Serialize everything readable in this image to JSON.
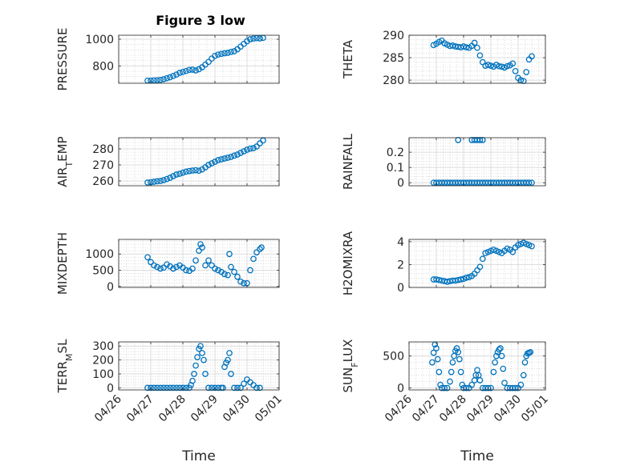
{
  "figure": {
    "title": "Figure 3 low",
    "xlabel": "Time",
    "date_ticks": [
      "04/26",
      "04/27",
      "04/28",
      "04/29",
      "04/30",
      "05/01"
    ],
    "marker_color": "#0072BD",
    "grid": true
  },
  "chart_data": [
    {
      "type": "scatter",
      "ylabel": "PRESSURE",
      "xlim": [
        "04/26",
        "05/01"
      ],
      "ylim": [
        670,
        1030
      ],
      "yticks": [
        800,
        1000
      ],
      "ytick_labels": [
        "800",
        "1000"
      ],
      "x": [
        0.9,
        1.0,
        1.1,
        1.2,
        1.3,
        1.4,
        1.5,
        1.6,
        1.7,
        1.8,
        1.9,
        2.0,
        2.1,
        2.2,
        2.3,
        2.4,
        2.5,
        2.6,
        2.7,
        2.8,
        2.9,
        3.0,
        3.1,
        3.2,
        3.3,
        3.4,
        3.5,
        3.6,
        3.7,
        3.8,
        3.9,
        4.0,
        4.1,
        4.2,
        4.3,
        4.4,
        4.5
      ],
      "y": [
        690,
        690,
        692,
        693,
        695,
        700,
        708,
        715,
        725,
        735,
        748,
        755,
        762,
        770,
        772,
        766,
        775,
        790,
        810,
        830,
        855,
        875,
        885,
        890,
        895,
        898,
        905,
        910,
        925,
        945,
        965,
        985,
        1000,
        1005,
        1008,
        1006,
        1010
      ]
    },
    {
      "type": "scatter",
      "ylabel": "THETA",
      "xlim": [
        "04/26",
        "05/01"
      ],
      "ylim": [
        279.3,
        290
      ],
      "yticks": [
        280,
        285,
        290
      ],
      "ytick_labels": [
        "280",
        "285",
        "290"
      ],
      "x": [
        0.9,
        1.0,
        1.1,
        1.2,
        1.3,
        1.4,
        1.5,
        1.6,
        1.7,
        1.8,
        1.9,
        2.0,
        2.1,
        2.2,
        2.3,
        2.4,
        2.5,
        2.6,
        2.7,
        2.8,
        2.9,
        3.0,
        3.1,
        3.2,
        3.3,
        3.4,
        3.5,
        3.6,
        3.7,
        3.8,
        3.9,
        4.0,
        4.1,
        4.2,
        4.3,
        4.4,
        4.5
      ],
      "y": [
        287.8,
        288.1,
        288.5,
        288.8,
        288.2,
        287.9,
        287.6,
        287.7,
        287.5,
        287.4,
        287.3,
        287.5,
        287.3,
        287.2,
        287.6,
        288.3,
        287.2,
        285.5,
        284.0,
        283.2,
        283.4,
        283.2,
        283.0,
        283.4,
        283.1,
        283.0,
        282.8,
        283.1,
        283.3,
        283.7,
        282.0,
        280.5,
        280.0,
        279.8,
        281.8,
        284.6,
        285.3
      ]
    },
    {
      "type": "scatter",
      "ylabel": "AIR_TEMP",
      "xlim": [
        "04/26",
        "05/01"
      ],
      "ylim": [
        257,
        287
      ],
      "yticks": [
        260,
        270,
        280
      ],
      "ytick_labels": [
        "260",
        "270",
        "280"
      ],
      "x": [
        0.9,
        1.0,
        1.1,
        1.2,
        1.3,
        1.4,
        1.5,
        1.6,
        1.7,
        1.8,
        1.9,
        2.0,
        2.1,
        2.2,
        2.3,
        2.4,
        2.5,
        2.6,
        2.7,
        2.8,
        2.9,
        3.0,
        3.1,
        3.2,
        3.3,
        3.4,
        3.5,
        3.6,
        3.7,
        3.8,
        3.9,
        4.0,
        4.1,
        4.2,
        4.3,
        4.4,
        4.5
      ],
      "y": [
        259.0,
        259.2,
        259.5,
        259.8,
        260.0,
        260.5,
        261.2,
        262.0,
        263.0,
        264.0,
        264.5,
        265.2,
        265.8,
        266.2,
        266.5,
        266.7,
        266.4,
        267.2,
        268.5,
        270.0,
        271.0,
        272.0,
        273.0,
        273.5,
        274.0,
        274.5,
        275.0,
        275.8,
        276.5,
        277.5,
        278.5,
        279.5,
        280.2,
        280.5,
        281.5,
        283.5,
        285.3
      ]
    },
    {
      "type": "scatter",
      "ylabel": "RAINFALL",
      "xlim": [
        "04/26",
        "05/01"
      ],
      "ylim": [
        -0.02,
        0.295
      ],
      "yticks": [
        0,
        0.1,
        0.2
      ],
      "ytick_labels": [
        "0",
        "0.1",
        "0.2"
      ],
      "x": [
        0.9,
        1.0,
        1.1,
        1.2,
        1.3,
        1.4,
        1.5,
        1.6,
        1.7,
        1.8,
        1.9,
        2.0,
        2.1,
        2.2,
        2.3,
        2.4,
        2.5,
        2.6,
        2.7,
        2.8,
        2.9,
        3.0,
        3.1,
        3.2,
        3.3,
        3.4,
        3.5,
        3.6,
        3.7,
        3.8,
        3.9,
        4.0,
        4.1,
        4.2,
        4.3,
        4.4,
        4.5,
        1.8,
        2.3,
        2.4,
        2.5,
        2.6,
        2.7
      ],
      "y": [
        0,
        0,
        0,
        0,
        0,
        0,
        0,
        0,
        0,
        0,
        0,
        0,
        0,
        0,
        0,
        0,
        0,
        0,
        0,
        0,
        0,
        0,
        0,
        0,
        0,
        0,
        0,
        0,
        0,
        0,
        0,
        0,
        0,
        0,
        0,
        0,
        0,
        0.28,
        0.28,
        0.28,
        0.28,
        0.28,
        0.28
      ]
    },
    {
      "type": "scatter",
      "ylabel": "MIXDEPTH",
      "xlim": [
        "04/26",
        "05/01"
      ],
      "ylim": [
        -30,
        1450
      ],
      "yticks": [
        0,
        500,
        1000
      ],
      "ytick_labels": [
        "0",
        "500",
        "1000"
      ],
      "x": [
        0.9,
        1.0,
        1.1,
        1.2,
        1.3,
        1.4,
        1.5,
        1.6,
        1.7,
        1.8,
        1.9,
        2.0,
        2.1,
        2.2,
        2.3,
        2.4,
        2.5,
        2.55,
        2.6,
        2.7,
        2.8,
        2.9,
        3.0,
        3.1,
        3.2,
        3.3,
        3.4,
        3.45,
        3.5,
        3.6,
        3.7,
        3.8,
        3.9,
        4.0,
        4.1,
        4.2,
        4.3,
        4.4,
        4.45
      ],
      "y": [
        900,
        750,
        650,
        600,
        550,
        580,
        680,
        620,
        550,
        600,
        650,
        580,
        500,
        480,
        550,
        800,
        1100,
        1300,
        1200,
        650,
        800,
        650,
        550,
        500,
        450,
        380,
        350,
        1000,
        600,
        450,
        300,
        150,
        100,
        100,
        500,
        850,
        1050,
        1150,
        1200
      ]
    },
    {
      "type": "scatter",
      "ylabel": "H2OMIXRA",
      "xlim": [
        "04/26",
        "05/01"
      ],
      "ylim": [
        0,
        4.2
      ],
      "yticks": [
        0,
        2,
        4
      ],
      "ytick_labels": [
        "0",
        "2",
        "4"
      ],
      "x": [
        0.9,
        1.0,
        1.1,
        1.2,
        1.3,
        1.4,
        1.5,
        1.6,
        1.7,
        1.8,
        1.9,
        2.0,
        2.1,
        2.2,
        2.3,
        2.4,
        2.5,
        2.6,
        2.7,
        2.8,
        2.9,
        3.0,
        3.1,
        3.2,
        3.3,
        3.4,
        3.5,
        3.6,
        3.7,
        3.8,
        3.9,
        4.0,
        4.1,
        4.2,
        4.3,
        4.4,
        4.5
      ],
      "y": [
        0.7,
        0.7,
        0.65,
        0.6,
        0.55,
        0.5,
        0.55,
        0.6,
        0.6,
        0.65,
        0.7,
        0.75,
        0.85,
        0.9,
        1.0,
        1.2,
        1.5,
        1.8,
        2.5,
        3.0,
        3.1,
        3.2,
        3.3,
        3.2,
        3.1,
        3.0,
        3.2,
        3.4,
        3.3,
        3.1,
        3.5,
        3.7,
        3.8,
        3.9,
        3.8,
        3.7,
        3.6
      ]
    },
    {
      "type": "scatter",
      "ylabel": "TERR_MSL",
      "xlim": [
        "04/26",
        "05/01"
      ],
      "ylim": [
        -15,
        330
      ],
      "yticks": [
        0,
        100,
        200,
        300
      ],
      "ytick_labels": [
        "0",
        "100",
        "200",
        "300"
      ],
      "x": [
        0.9,
        1.0,
        1.1,
        1.2,
        1.3,
        1.4,
        1.5,
        1.6,
        1.7,
        1.8,
        1.9,
        2.0,
        2.1,
        2.2,
        2.25,
        2.3,
        2.35,
        2.4,
        2.45,
        2.5,
        2.55,
        2.6,
        2.65,
        2.7,
        2.8,
        2.9,
        3.0,
        3.1,
        3.2,
        3.25,
        3.3,
        3.35,
        3.4,
        3.45,
        3.5,
        3.6,
        3.7,
        3.8,
        3.9,
        4.0,
        4.1,
        4.2,
        4.3,
        4.4
      ],
      "y": [
        0,
        0,
        0,
        0,
        0,
        0,
        0,
        0,
        0,
        0,
        0,
        0,
        0,
        0,
        20,
        50,
        100,
        160,
        220,
        280,
        300,
        250,
        200,
        100,
        0,
        0,
        0,
        0,
        0,
        0,
        150,
        180,
        200,
        250,
        100,
        0,
        0,
        0,
        30,
        60,
        40,
        20,
        0,
        0
      ]
    },
    {
      "type": "scatter",
      "ylabel": "SUN_FLUX",
      "xlim": [
        "04/26",
        "05/01"
      ],
      "ylim": [
        -30,
        720
      ],
      "yticks": [
        0,
        500
      ],
      "ytick_labels": [
        "0",
        "500"
      ],
      "x": [
        0.85,
        0.9,
        0.95,
        1.0,
        1.05,
        1.1,
        1.15,
        1.2,
        1.3,
        1.4,
        1.5,
        1.55,
        1.6,
        1.65,
        1.7,
        1.75,
        1.8,
        1.85,
        1.9,
        1.95,
        2.0,
        2.1,
        2.2,
        2.3,
        2.4,
        2.45,
        2.5,
        2.55,
        2.6,
        2.7,
        2.8,
        2.9,
        3.0,
        3.1,
        3.15,
        3.2,
        3.25,
        3.3,
        3.35,
        3.4,
        3.45,
        3.5,
        3.6,
        3.7,
        3.8,
        3.9,
        4.0,
        4.1,
        4.2,
        4.25,
        4.3,
        4.35,
        4.4,
        4.45
      ],
      "y": [
        400,
        550,
        680,
        620,
        450,
        250,
        50,
        0,
        0,
        0,
        100,
        250,
        400,
        500,
        580,
        620,
        560,
        450,
        250,
        50,
        0,
        0,
        0,
        50,
        120,
        200,
        280,
        200,
        120,
        0,
        0,
        0,
        0,
        250,
        400,
        500,
        560,
        600,
        620,
        500,
        300,
        80,
        0,
        0,
        0,
        0,
        0,
        50,
        200,
        400,
        500,
        540,
        550,
        560
      ]
    }
  ]
}
